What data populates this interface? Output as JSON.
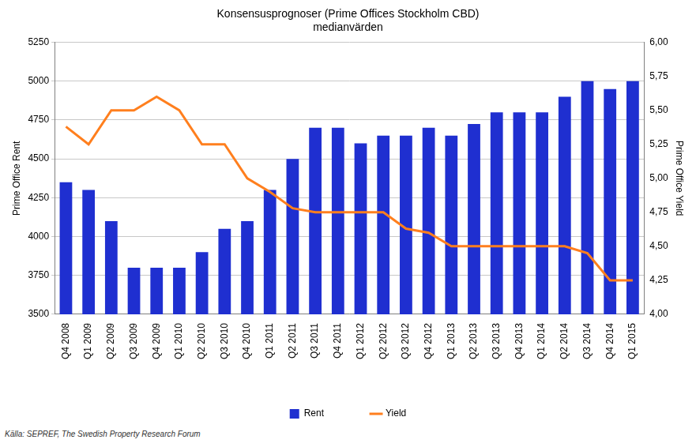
{
  "chart_data": {
    "type": "bar",
    "title": "Konsensusprognoser (Prime Offices Stockholm CBD)",
    "subtitle": "medianvärden",
    "source": "Källa: SEPREF, The Swedish Property Research Forum",
    "y_label": "Prime Office Rent",
    "y2_label": "Prime Office Yield",
    "categories": [
      "Q4 2008",
      "Q1 2009",
      "Q2 2009",
      "Q3 2009",
      "Q4 2009",
      "Q1 2010",
      "Q2 2010",
      "Q3 2010",
      "Q4 2010",
      "Q1 2011",
      "Q2 2011",
      "Q3 2011",
      "Q4 2011",
      "Q1 2012",
      "Q2 2012",
      "Q3 2012",
      "Q4 2012",
      "Q1 2013",
      "Q2 2013",
      "Q3 2013",
      "Q4 2013",
      "Q1 2014",
      "Q2 2014",
      "Q3 2014",
      "Q4 2014",
      "Q1 2015"
    ],
    "series": [
      {
        "name": "Rent",
        "type": "bar",
        "color": "#1f2fd0",
        "values": [
          4350,
          4300,
          4100,
          3800,
          3800,
          3800,
          3900,
          4050,
          4100,
          4300,
          4500,
          4700,
          4700,
          4600,
          4650,
          4650,
          4700,
          4650,
          4725,
          4800,
          4800,
          4800,
          4900,
          5000,
          4950,
          5000
        ]
      },
      {
        "name": "Yield",
        "type": "line",
        "color": "#ff7f1e",
        "axis": "y2",
        "values": [
          5.38,
          5.25,
          5.5,
          5.5,
          5.6,
          5.5,
          5.25,
          5.25,
          5.0,
          4.9,
          4.78,
          4.75,
          4.75,
          4.75,
          4.75,
          4.63,
          4.6,
          4.5,
          4.5,
          4.5,
          4.5,
          4.5,
          4.5,
          4.45,
          4.25,
          4.25
        ]
      }
    ],
    "ylim": [
      3500,
      5250
    ],
    "yticks": [
      3500,
      3750,
      4000,
      4250,
      4500,
      4750,
      5000,
      5250
    ],
    "y2lim": [
      4.0,
      6.0
    ],
    "y2ticks": [
      {
        "value": 4.0,
        "label": "4,00"
      },
      {
        "value": 4.25,
        "label": "4,25"
      },
      {
        "value": 4.5,
        "label": "4,50"
      },
      {
        "value": 4.75,
        "label": "4,75"
      },
      {
        "value": 5.0,
        "label": "5,00"
      },
      {
        "value": 5.25,
        "label": "5,25"
      },
      {
        "value": 5.5,
        "label": "5,50"
      },
      {
        "value": 5.75,
        "label": "5,75"
      },
      {
        "value": 6.0,
        "label": "6,00"
      }
    ],
    "grid": true,
    "legend": "bottom"
  }
}
